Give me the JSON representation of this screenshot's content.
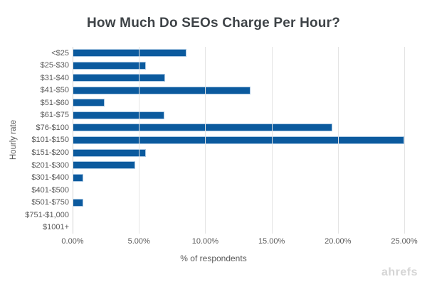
{
  "watermark": "ahrefs",
  "chart_data": {
    "type": "bar",
    "orientation": "horizontal",
    "title": "How Much Do SEOs Charge Per Hour?",
    "xlabel": "% of respondents",
    "ylabel": "Hourly rate",
    "categories": [
      "<$25",
      "$25-$30",
      "$31-$40",
      "$41-$50",
      "$51-$60",
      "$61-$75",
      "$76-$100",
      "$101-$150",
      "$151-$200",
      "$201-$300",
      "$301-$400",
      "$401-$500",
      "$501-$750",
      "$751-$1,000",
      "$1001+"
    ],
    "values": [
      8.6,
      5.5,
      7.0,
      13.4,
      2.4,
      6.9,
      19.6,
      25.0,
      5.5,
      4.7,
      0.8,
      0,
      0.8,
      0,
      0
    ],
    "xlim": [
      0,
      25
    ],
    "x_tick_labels": [
      "0.00%",
      "5.00%",
      "10.00%",
      "15.00%",
      "20.00%",
      "25.00%"
    ],
    "grid": "vertical-only",
    "legend": "none",
    "colors": {
      "bar": "#0B5A9E",
      "bar_border": "#A9C7E3",
      "grid": "#E4E4E4",
      "axis_line": "#D2D2D2",
      "title_text": "#3E4347",
      "label_text": "#595959",
      "watermark_text": "#D5D5D5"
    }
  }
}
